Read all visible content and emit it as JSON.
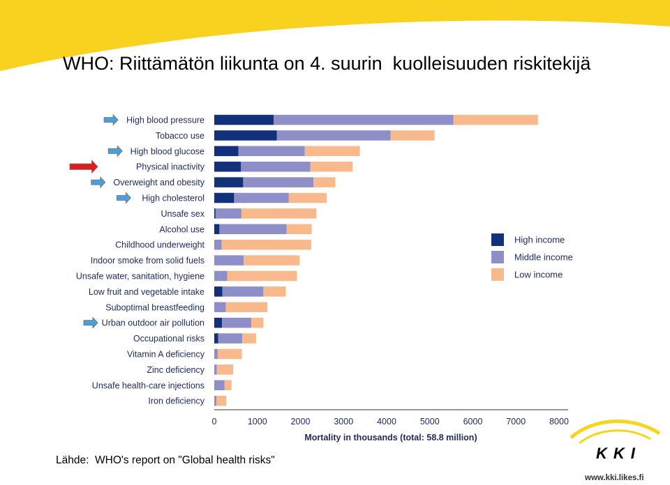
{
  "slide": {
    "title": "WHO: Riittämätön liikunta on 4. suurin  kuolleisuuden riskitekijä",
    "source": "Lähde:  WHO's report on \"Global health risks\"",
    "logo_text": "KKI",
    "url": "www.kki.likes.fi"
  },
  "colors": {
    "banner": "#f8d21e",
    "high_income": "#13307a",
    "middle_income": "#8e8fc8",
    "low_income": "#f8ba8d",
    "red_arrow": "#e01c1c",
    "blue_arrow": "#4aa0dd",
    "logo_arc": "#f5d51e"
  },
  "chart_data": {
    "type": "bar",
    "orientation": "horizontal",
    "stacked": true,
    "categories": [
      "High blood pressure",
      "Tobacco use",
      "High blood glucose",
      "Physical inactivity",
      "Overweight and obesity",
      "High cholesterol",
      "Unsafe sex",
      "Alcohol use",
      "Childhood underweight",
      "Indoor smoke from solid fuels",
      "Unsafe water, sanitation, hygiene",
      "Low fruit and vegetable intake",
      "Suboptimal breastfeeding",
      "Urban outdoor air pollution",
      "Occupational risks",
      "Vitamin A deficiency",
      "Zinc deficiency",
      "Unsafe health-care injections",
      "Iron deficiency"
    ],
    "series": [
      {
        "name": "High income",
        "values": [
          1380,
          1450,
          560,
          620,
          670,
          460,
          30,
          120,
          0,
          0,
          0,
          190,
          0,
          180,
          90,
          0,
          0,
          0,
          0
        ]
      },
      {
        "name": "Middle income",
        "values": [
          4170,
          2640,
          1540,
          1610,
          1630,
          1270,
          600,
          1560,
          170,
          680,
          300,
          950,
          270,
          680,
          560,
          80,
          60,
          240,
          50
        ]
      },
      {
        "name": "Low income",
        "values": [
          1960,
          1020,
          1280,
          980,
          510,
          880,
          1740,
          580,
          2080,
          1300,
          1620,
          520,
          960,
          280,
          320,
          560,
          380,
          160,
          230
        ]
      }
    ],
    "xlim": [
      0,
      8000
    ],
    "xticks": [
      "0",
      "1000",
      "2000",
      "3000",
      "4000",
      "5000",
      "6000",
      "7000",
      "8000"
    ],
    "xlabel": "Mortality in thousands (total: 58.8 million)",
    "legend": {
      "position": "right",
      "entries": [
        "High income",
        "Middle income",
        "Low income"
      ]
    },
    "highlight_arrows": [
      {
        "category": "High blood pressure",
        "color": "blue"
      },
      {
        "category": "High blood glucose",
        "color": "blue"
      },
      {
        "category": "Physical inactivity",
        "color": "red"
      },
      {
        "category": "Overweight and obesity",
        "color": "blue"
      },
      {
        "category": "High cholesterol",
        "color": "blue"
      },
      {
        "category": "Urban outdoor air pollution",
        "color": "blue"
      }
    ]
  }
}
